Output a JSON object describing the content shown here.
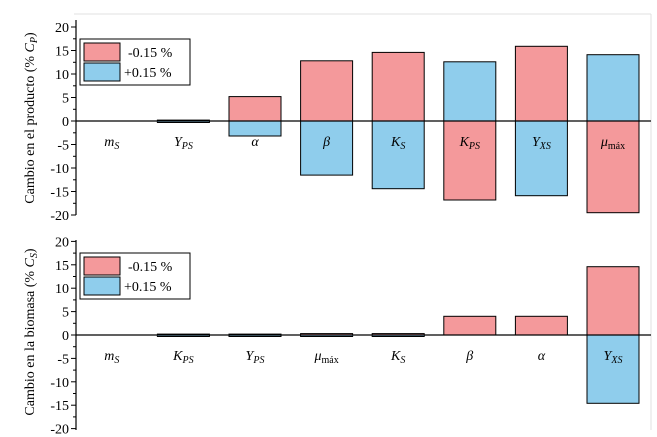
{
  "chart_data": [
    {
      "type": "bar",
      "ylabel_main": "Cambio en el producto (% ",
      "ylabel_var": "C",
      "ylabel_sub": "P",
      "ylabel_end": ")",
      "ylim": [
        -20,
        20
      ],
      "yticks": [
        "20",
        "15",
        "10",
        "5",
        "0",
        "-5",
        "-10",
        "-15",
        "-20"
      ],
      "grid": false,
      "legend_position": "top-left",
      "categories": [
        {
          "main": "m",
          "sub": "S"
        },
        {
          "main": "Y",
          "sub": "PS"
        },
        {
          "main": "α",
          "sub": ""
        },
        {
          "main": "β",
          "sub": ""
        },
        {
          "main": "K",
          "sub": "S"
        },
        {
          "main": "K",
          "sub": "PS"
        },
        {
          "main": "Y",
          "sub": "XS"
        },
        {
          "main": "μ",
          "sub": "máx"
        }
      ],
      "series": [
        {
          "name": "-0.15 %",
          "color": "#f4999b",
          "values": [
            0,
            0.2,
            5.2,
            12.8,
            14.6,
            -16.8,
            15.9,
            -19.5
          ]
        },
        {
          "name": "+0.15 %",
          "color": "#8fcdec",
          "values": [
            0,
            -0.2,
            -3.2,
            -11.5,
            -14.4,
            12.6,
            -15.9,
            14.1
          ]
        }
      ]
    },
    {
      "type": "bar",
      "ylabel_main": "Cambio en la biomasa (% ",
      "ylabel_var": "C",
      "ylabel_sub": "S",
      "ylabel_end": ")",
      "ylim": [
        -20,
        20
      ],
      "yticks": [
        "20",
        "15",
        "10",
        "5",
        "0",
        "-5",
        "-10",
        "-15",
        "-20"
      ],
      "grid": false,
      "legend_position": "top-left",
      "categories": [
        {
          "main": "m",
          "sub": "S"
        },
        {
          "main": "K",
          "sub": "PS"
        },
        {
          "main": "Y",
          "sub": "PS"
        },
        {
          "main": "μ",
          "sub": "máx"
        },
        {
          "main": "K",
          "sub": "S"
        },
        {
          "main": "β",
          "sub": ""
        },
        {
          "main": "α",
          "sub": ""
        },
        {
          "main": "Y",
          "sub": "XS"
        }
      ],
      "series": [
        {
          "name": "-0.15 %",
          "color": "#f4999b",
          "values": [
            0,
            0.2,
            0.2,
            0.3,
            0.3,
            4.0,
            4.0,
            14.6
          ]
        },
        {
          "name": "+0.15 %",
          "color": "#8fcdec",
          "values": [
            0,
            -0.2,
            -0.2,
            -0.3,
            -0.2,
            0,
            0,
            -14.6
          ]
        }
      ]
    }
  ]
}
